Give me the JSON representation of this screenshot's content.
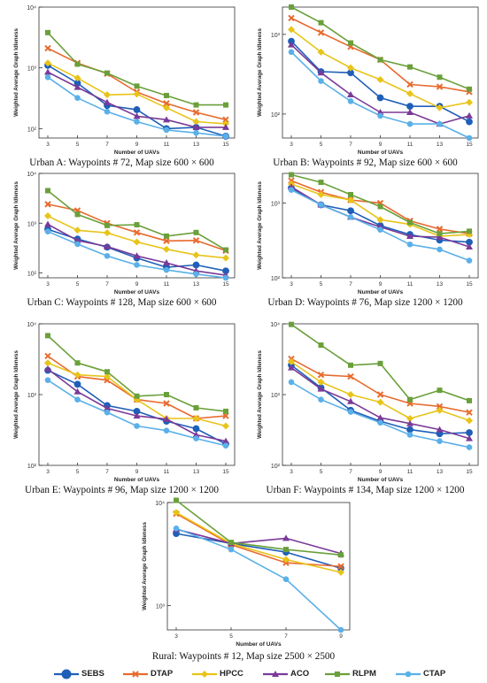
{
  "series_styles": [
    {
      "name": "SEBS",
      "color": "#1f5fb8",
      "marker": "circle"
    },
    {
      "name": "DTAP",
      "color": "#e86a2e",
      "marker": "cross"
    },
    {
      "name": "HPCC",
      "color": "#e8c419",
      "marker": "diamond"
    },
    {
      "name": "ACO",
      "color": "#7a3a98",
      "marker": "triangle"
    },
    {
      "name": "RLPM",
      "color": "#6aa03a",
      "marker": "square"
    },
    {
      "name": "CTAP",
      "color": "#5ab0e8",
      "marker": "dot"
    }
  ],
  "chart_data": [
    {
      "type": "line",
      "caption": "Urban A: Waypoints # 72, Map size 600 × 600",
      "xlabel": "Number of UAVs",
      "ylabel": "Weighted Average Graph Idleness",
      "yscale": "log",
      "ylim": [
        70,
        10000
      ],
      "yticks": [
        "10²",
        "10³",
        "10⁴"
      ],
      "x": [
        3,
        5,
        7,
        9,
        11,
        13,
        15
      ],
      "series": [
        {
          "name": "SEBS",
          "values": [
            1100,
            560,
            240,
            205,
            100,
            105,
            75
          ]
        },
        {
          "name": "DTAP",
          "values": [
            2100,
            1200,
            800,
            400,
            260,
            185,
            140
          ]
        },
        {
          "name": "HPCC",
          "values": [
            1200,
            680,
            360,
            370,
            220,
            130,
            120
          ]
        },
        {
          "name": "ACO",
          "values": [
            850,
            480,
            270,
            160,
            140,
            105,
            105
          ]
        },
        {
          "name": "RLPM",
          "values": [
            3800,
            1150,
            820,
            500,
            350,
            245,
            245
          ]
        },
        {
          "name": "CTAP",
          "values": [
            700,
            320,
            190,
            130,
            95,
            85,
            75
          ]
        }
      ]
    },
    {
      "type": "line",
      "caption": "Urban B: Waypoints # 92, Map size 600 × 600",
      "xlabel": "Number of UAVs",
      "ylabel": "Weighted Average Graph Idleness",
      "yscale": "log",
      "ylim": [
        50,
        2200
      ],
      "yticks": [
        "10²",
        "10³"
      ],
      "x": [
        3,
        5,
        7,
        9,
        11,
        13,
        15
      ],
      "series": [
        {
          "name": "SEBS",
          "values": [
            820,
            340,
            330,
            160,
            125,
            125,
            80
          ]
        },
        {
          "name": "DTAP",
          "values": [
            1600,
            1050,
            700,
            480,
            235,
            220,
            190
          ]
        },
        {
          "name": "HPCC",
          "values": [
            1150,
            600,
            380,
            270,
            180,
            120,
            140
          ]
        },
        {
          "name": "ACO",
          "values": [
            740,
            330,
            175,
            105,
            105,
            75,
            95
          ]
        },
        {
          "name": "RLPM",
          "values": [
            2200,
            1400,
            780,
            480,
            390,
            290,
            205
          ]
        },
        {
          "name": "CTAP",
          "values": [
            600,
            260,
            145,
            95,
            75,
            75,
            50
          ]
        }
      ]
    },
    {
      "type": "line",
      "caption": "Urban C: Waypoints # 128, Map size 600 × 600",
      "xlabel": "Number of UAVs",
      "ylabel": "Weighted Average Graph Idleness",
      "yscale": "log",
      "ylim": [
        80,
        10000
      ],
      "yticks": [
        "10²",
        "10³",
        "10⁴"
      ],
      "x": [
        3,
        5,
        7,
        9,
        11,
        13,
        15
      ],
      "series": [
        {
          "name": "SEBS",
          "values": [
            750,
            480,
            330,
            200,
            130,
            145,
            110
          ]
        },
        {
          "name": "DTAP",
          "values": [
            2400,
            1800,
            1000,
            650,
            440,
            450,
            280
          ]
        },
        {
          "name": "HPCC",
          "values": [
            1400,
            720,
            640,
            420,
            300,
            230,
            200
          ]
        },
        {
          "name": "ACO",
          "values": [
            950,
            450,
            340,
            220,
            160,
            110,
            90
          ]
        },
        {
          "name": "RLPM",
          "values": [
            4500,
            1500,
            900,
            930,
            550,
            650,
            290
          ]
        },
        {
          "name": "CTAP",
          "values": [
            680,
            380,
            220,
            145,
            115,
            95,
            80
          ]
        }
      ]
    },
    {
      "type": "line",
      "caption": "Urban D: Waypoints # 76, Map size 1200 × 1200",
      "xlabel": "Number of UAVs",
      "ylabel": "Weighted Average Graph Idleness",
      "yscale": "log",
      "ylim": [
        100,
        2500
      ],
      "yticks": [
        "10²",
        "10³"
      ],
      "x": [
        3,
        5,
        7,
        9,
        11,
        13,
        15
      ],
      "series": [
        {
          "name": "SEBS",
          "values": [
            1600,
            950,
            790,
            500,
            380,
            320,
            300
          ]
        },
        {
          "name": "DTAP",
          "values": [
            2000,
            1400,
            1100,
            1000,
            580,
            450,
            390
          ]
        },
        {
          "name": "HPCC",
          "values": [
            1800,
            1300,
            1100,
            600,
            520,
            360,
            380
          ]
        },
        {
          "name": "ACO",
          "values": [
            1650,
            950,
            650,
            480,
            360,
            350,
            260
          ]
        },
        {
          "name": "RLPM",
          "values": [
            2400,
            1900,
            1300,
            900,
            550,
            390,
            420
          ]
        },
        {
          "name": "CTAP",
          "values": [
            1500,
            950,
            650,
            440,
            280,
            240,
            170
          ]
        }
      ]
    },
    {
      "type": "line",
      "caption": "Urban E: Waypoints # 96, Map size 1200 × 1200",
      "xlabel": "Number of UAVs",
      "ylabel": "Weighted Average Graph Idleness",
      "yscale": "log",
      "ylim": [
        100,
        10000
      ],
      "yticks": [
        "10²",
        "10³",
        "10⁴"
      ],
      "x": [
        3,
        5,
        7,
        9,
        11,
        13,
        15
      ],
      "series": [
        {
          "name": "SEBS",
          "values": [
            2200,
            1400,
            700,
            580,
            420,
            330,
            200
          ]
        },
        {
          "name": "DTAP",
          "values": [
            3500,
            1800,
            1600,
            850,
            750,
            460,
            500
          ]
        },
        {
          "name": "HPCC",
          "values": [
            2800,
            1900,
            1800,
            850,
            460,
            460,
            360
          ]
        },
        {
          "name": "ACO",
          "values": [
            2300,
            1100,
            640,
            500,
            450,
            270,
            220
          ]
        },
        {
          "name": "RLPM",
          "values": [
            6800,
            2800,
            2100,
            950,
            1000,
            650,
            580
          ]
        },
        {
          "name": "CTAP",
          "values": [
            1600,
            850,
            560,
            360,
            310,
            240,
            190
          ]
        }
      ]
    },
    {
      "type": "line",
      "caption": "Urban F: Waypoints # 134, Map size 1200 × 1200",
      "xlabel": "Number of UAVs",
      "ylabel": "Weighted Average Graph Idleness",
      "yscale": "log",
      "ylim": [
        100,
        10000
      ],
      "yticks": [
        "10²",
        "10³",
        "10⁴"
      ],
      "x": [
        3,
        5,
        7,
        9,
        11,
        13,
        15
      ],
      "series": [
        {
          "name": "SEBS",
          "values": [
            2600,
            1250,
            600,
            420,
            320,
            280,
            290
          ]
        },
        {
          "name": "DTAP",
          "values": [
            3200,
            1900,
            1800,
            1000,
            750,
            680,
            560
          ]
        },
        {
          "name": "HPCC",
          "values": [
            2900,
            1500,
            1000,
            780,
            460,
            600,
            430
          ]
        },
        {
          "name": "ACO",
          "values": [
            2400,
            1200,
            800,
            470,
            390,
            320,
            240
          ]
        },
        {
          "name": "RLPM",
          "values": [
            9800,
            5000,
            2600,
            2750,
            850,
            1150,
            820
          ]
        },
        {
          "name": "CTAP",
          "values": [
            1500,
            850,
            570,
            400,
            270,
            220,
            180
          ]
        }
      ]
    },
    {
      "type": "line",
      "caption": "Rural: Waypoints # 12, Map size 2500 × 2500",
      "xlabel": "Number of UAVs",
      "ylabel": "Weighted Average Graph Idleness",
      "yscale": "log",
      "ylim": [
        580,
        10000
      ],
      "yticks": [
        "10³",
        "10⁴"
      ],
      "x": [
        3,
        5,
        7,
        9
      ],
      "series": [
        {
          "name": "SEBS",
          "values": [
            5000,
            4000,
            3300,
            2300
          ]
        },
        {
          "name": "DTAP",
          "values": [
            7800,
            3900,
            2600,
            2400
          ]
        },
        {
          "name": "HPCC",
          "values": [
            8000,
            4000,
            2800,
            2100
          ]
        },
        {
          "name": "ACO",
          "values": [
            5500,
            4000,
            4500,
            3200
          ]
        },
        {
          "name": "RLPM",
          "values": [
            10500,
            4100,
            3500,
            3100
          ]
        },
        {
          "name": "CTAP",
          "values": [
            5600,
            3500,
            1800,
            580
          ]
        }
      ]
    }
  ]
}
